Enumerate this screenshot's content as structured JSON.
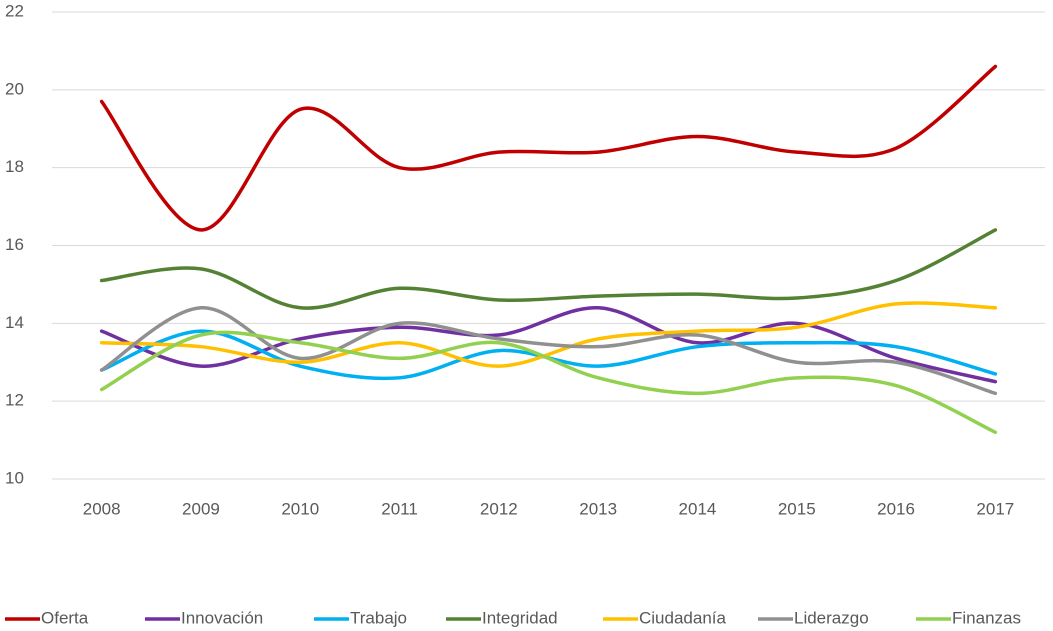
{
  "chart_data": {
    "type": "line",
    "categories": [
      "2008",
      "2009",
      "2010",
      "2011",
      "2012",
      "2013",
      "2014",
      "2015",
      "2016",
      "2017"
    ],
    "ylim": [
      10,
      22
    ],
    "yticks": [
      10,
      12,
      14,
      16,
      18,
      20,
      22
    ],
    "grid": true,
    "smooth": true,
    "legend": "bottom",
    "series": [
      {
        "name": "Oferta",
        "color": "#c00000",
        "values": [
          19.7,
          16.4,
          19.5,
          18.0,
          18.4,
          18.4,
          18.8,
          18.4,
          18.5,
          20.6
        ]
      },
      {
        "name": "Innovación",
        "color": "#7030a0",
        "values": [
          13.8,
          12.9,
          13.6,
          13.9,
          13.7,
          14.4,
          13.5,
          14.0,
          13.1,
          12.5
        ]
      },
      {
        "name": "Trabajo",
        "color": "#00b0f0",
        "values": [
          12.8,
          13.8,
          12.9,
          12.6,
          13.3,
          12.9,
          13.4,
          13.5,
          13.4,
          12.7
        ]
      },
      {
        "name": "Integridad",
        "color": "#548235",
        "values": [
          15.1,
          15.4,
          14.4,
          14.9,
          14.6,
          14.7,
          14.75,
          14.65,
          15.1,
          16.4
        ]
      },
      {
        "name": "Ciudadanía",
        "color": "#ffc000",
        "values": [
          13.5,
          13.4,
          13.0,
          13.5,
          12.9,
          13.6,
          13.8,
          13.9,
          14.5,
          14.4
        ]
      },
      {
        "name": "Liderazgo",
        "color": "#909090",
        "values": [
          12.8,
          14.4,
          13.1,
          14.0,
          13.6,
          13.4,
          13.7,
          13.0,
          13.0,
          12.2
        ]
      },
      {
        "name": "Finanzas",
        "color": "#92d050",
        "values": [
          12.3,
          13.7,
          13.5,
          13.1,
          13.5,
          12.6,
          12.2,
          12.6,
          12.4,
          11.2
        ]
      }
    ]
  }
}
